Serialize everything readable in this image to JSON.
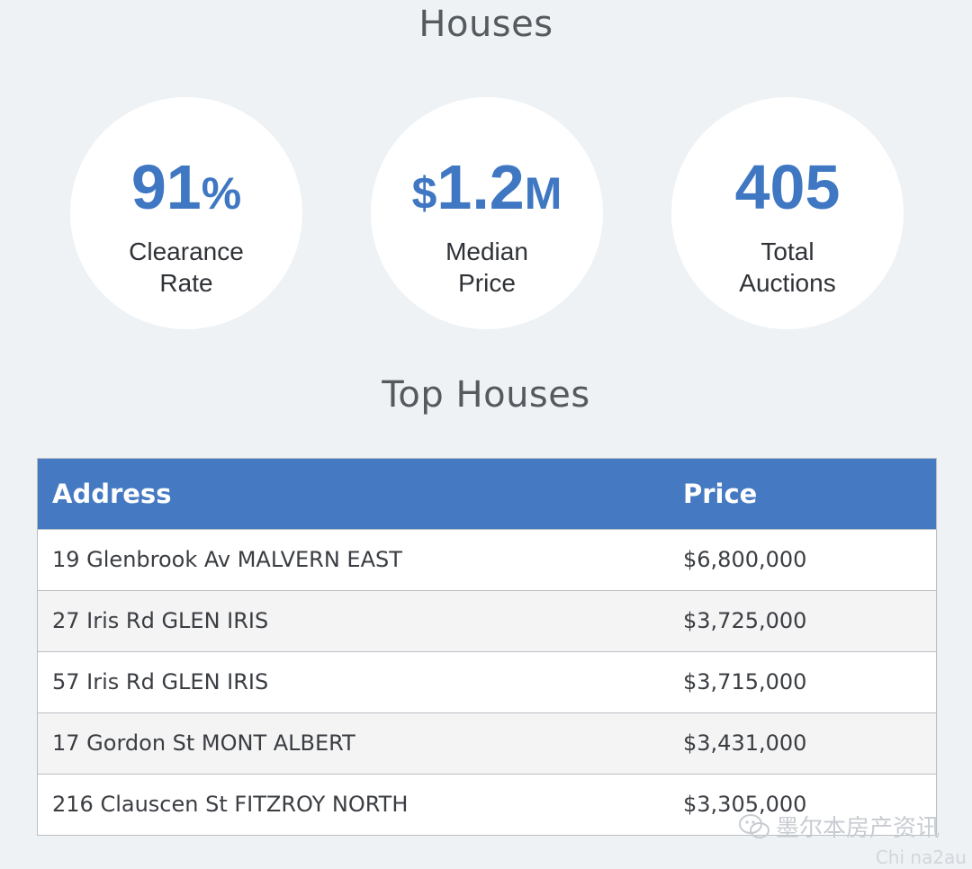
{
  "sections": {
    "houses_title": "Houses",
    "top_houses_title": "Top Houses"
  },
  "stats": [
    {
      "value": "91",
      "unit": "%",
      "label_line1": "Clearance",
      "label_line2": "Rate"
    },
    {
      "prefix": "$",
      "value": "1.2",
      "unit": "M",
      "label_line1": "Median",
      "label_line2": "Price"
    },
    {
      "value": "405",
      "label_line1": "Total",
      "label_line2": "Auctions"
    }
  ],
  "table": {
    "headers": {
      "address": "Address",
      "price": "Price"
    },
    "rows": [
      {
        "address": "19 Glenbrook Av MALVERN EAST",
        "price": "$6,800,000"
      },
      {
        "address": "27 Iris Rd GLEN IRIS",
        "price": "$3,725,000"
      },
      {
        "address": "57 Iris Rd GLEN IRIS",
        "price": "$3,715,000"
      },
      {
        "address": "17 Gordon St MONT ALBERT",
        "price": "$3,431,000"
      },
      {
        "address": "216 Clauscen St FITZROY NORTH",
        "price": "$3,305,000"
      }
    ]
  },
  "watermark": {
    "icon": "wechat-icon",
    "text": "墨尔本房产资讯",
    "subtext": "Chi na2au"
  },
  "colors": {
    "accent": "#3f77c3",
    "header_bg": "#457ac2",
    "page_bg": "#eef2f5"
  }
}
